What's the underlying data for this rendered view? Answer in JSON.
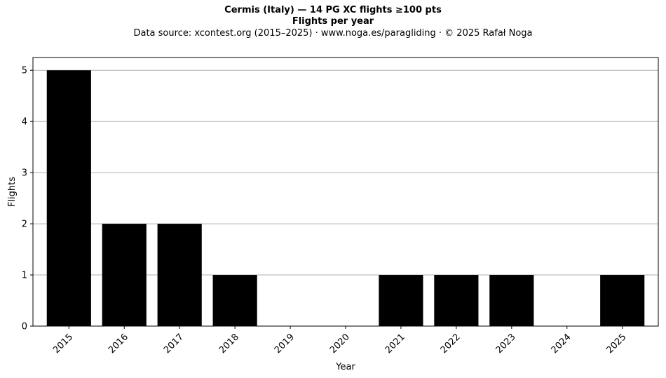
{
  "chart_data": {
    "type": "bar",
    "title": "Cermis (Italy)  —  14 PG XC flights ≥100 pts",
    "title2": "Flights per year",
    "subtitle": "Data source: xcontest.org (2015–2025)  ·  www.noga.es/paragliding  ·  © 2025 Rafał Noga",
    "xlabel": "Year",
    "ylabel": "Flights",
    "categories": [
      "2015",
      "2016",
      "2017",
      "2018",
      "2019",
      "2020",
      "2021",
      "2022",
      "2023",
      "2024",
      "2025"
    ],
    "values": [
      5,
      2,
      2,
      1,
      0,
      0,
      1,
      1,
      1,
      0,
      1
    ],
    "ylim": [
      0,
      5.25
    ],
    "yticks": [
      "0",
      "1",
      "2",
      "3",
      "4",
      "5"
    ],
    "grid": "horizontal",
    "bar_color": "#000000",
    "grid_color": "#b0b0b0"
  }
}
